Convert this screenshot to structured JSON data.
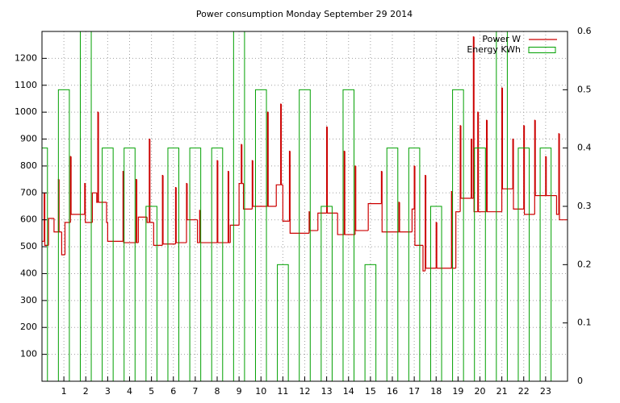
{
  "chart_data": {
    "type": "line",
    "title": "Power consumption Monday September 29 2014",
    "xlim": [
      0,
      24
    ],
    "xticks": [
      1,
      2,
      3,
      4,
      5,
      6,
      7,
      8,
      9,
      10,
      11,
      12,
      13,
      14,
      15,
      16,
      17,
      18,
      19,
      20,
      21,
      22,
      23
    ],
    "ylim": [
      0,
      1300
    ],
    "yticks": [
      100,
      200,
      300,
      400,
      500,
      600,
      700,
      800,
      900,
      1000,
      1100,
      1200
    ],
    "y2lim": [
      0,
      0.6
    ],
    "y2ticks": [
      0,
      0.1,
      0.2,
      0.3,
      0.4,
      0.5,
      0.6
    ],
    "grid": true,
    "legend": "top-right",
    "series": [
      {
        "name": "Power W",
        "type": "step",
        "color": "#cc0000",
        "x": [
          0,
          0.1,
          0.13,
          0.3,
          0.55,
          0.75,
          0.78,
          0.9,
          1.05,
          1.3,
          1.33,
          1.95,
          1.98,
          2.3,
          2.5,
          2.55,
          2.58,
          2.95,
          3,
          3.7,
          3.73,
          4.3,
          4.33,
          4.4,
          4.8,
          4.9,
          4.93,
          5.1,
          5.5,
          5.53,
          6.1,
          6.13,
          6.6,
          6.63,
          7.1,
          7.2,
          7.23,
          8,
          8.03,
          8.5,
          8.53,
          8.6,
          9,
          9.1,
          9.13,
          9.2,
          9.6,
          9.63,
          10.3,
          10.33,
          10.7,
          10.9,
          10.93,
          11,
          11.3,
          11.33,
          12.2,
          12.23,
          12.6,
          13,
          13.03,
          13.5,
          13.8,
          13.83,
          14.3,
          14.33,
          14.9,
          15.5,
          15.53,
          16.3,
          16.33,
          16.9,
          17,
          17.03,
          17.4,
          17.5,
          17.53,
          18,
          18.03,
          18.7,
          18.73,
          18.9,
          19.1,
          19.13,
          19.6,
          19.63,
          19.7,
          19.73,
          19.9,
          19.93,
          20.3,
          20.33,
          21,
          21.03,
          21.5,
          21.53,
          22,
          22.03,
          22.5,
          22.53,
          23,
          23.03,
          23.5,
          23.6,
          23.63
        ],
        "values": [
          520,
          700,
          505,
          605,
          555,
          750,
          555,
          470,
          590,
          835,
          620,
          735,
          590,
          700,
          665,
          1000,
          665,
          590,
          520,
          780,
          515,
          750,
          515,
          610,
          590,
          900,
          590,
          505,
          765,
          510,
          720,
          515,
          735,
          600,
          515,
          635,
          515,
          820,
          515,
          780,
          515,
          580,
          735,
          880,
          735,
          640,
          820,
          650,
          1000,
          650,
          730,
          1030,
          730,
          595,
          855,
          550,
          630,
          560,
          625,
          945,
          625,
          545,
          855,
          545,
          800,
          560,
          660,
          780,
          555,
          665,
          555,
          640,
          800,
          505,
          410,
          765,
          420,
          590,
          420,
          705,
          420,
          630,
          950,
          680,
          900,
          680,
          1280,
          630,
          1000,
          630,
          970,
          630,
          1090,
          715,
          900,
          640,
          950,
          620,
          970,
          690,
          835,
          690,
          620,
          920,
          600
        ]
      },
      {
        "name": "Energy KWh",
        "type": "bar",
        "color": "#00a000",
        "axis": "y2",
        "x": [
          0,
          1,
          2,
          3,
          4,
          5,
          6,
          7,
          8,
          9,
          10,
          11,
          12,
          13,
          14,
          15,
          16,
          17,
          18,
          19,
          20,
          21,
          22,
          23
        ],
        "values": [
          0.4,
          0.5,
          0.6,
          0.4,
          0.4,
          0.3,
          0.4,
          0.4,
          0.4,
          0.6,
          0.5,
          0.2,
          0.5,
          0.3,
          0.5,
          0.2,
          0.4,
          0.4,
          0.3,
          0.5,
          0.4,
          0.6,
          0.4,
          0.4
        ]
      }
    ]
  }
}
